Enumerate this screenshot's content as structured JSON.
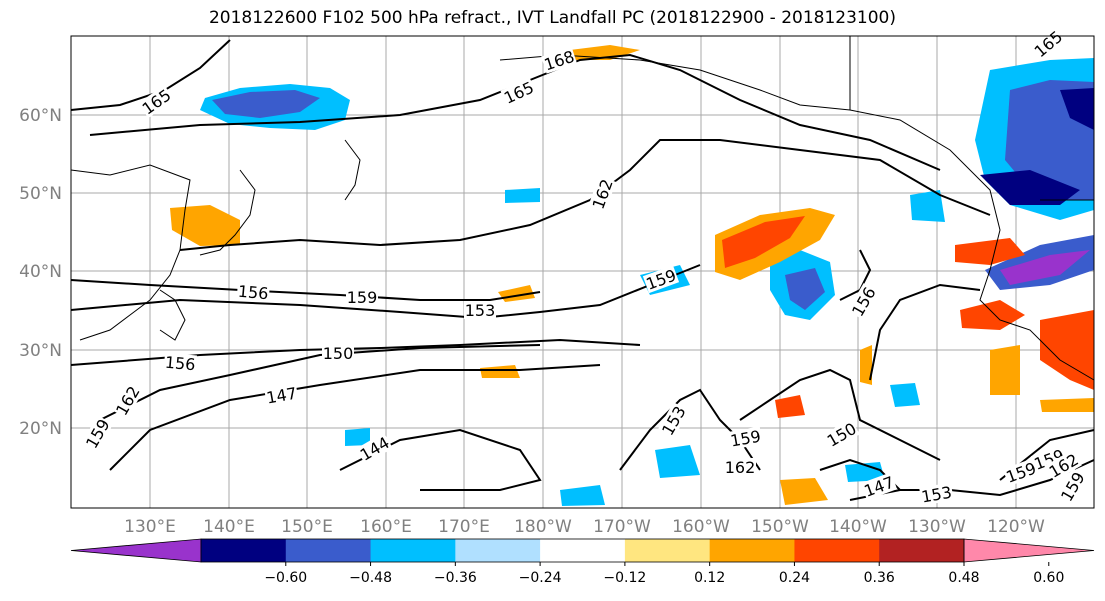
{
  "title": "2018122600 F102 500 hPa refract., IVT Landfall PC (2018122900 - 2018123100)",
  "latitude_labels": [
    "60°N",
    "50°N",
    "40°N",
    "30°N",
    "20°N"
  ],
  "longitude_labels": [
    "130°E",
    "140°E",
    "150°E",
    "160°E",
    "170°E",
    "180°W",
    "170°W",
    "160°W",
    "150°W",
    "140°W",
    "130°W",
    "120°W"
  ],
  "contour_labels": [
    "165",
    "168",
    "165",
    "162",
    "156",
    "159",
    "153",
    "159",
    "156",
    "150",
    "156",
    "147",
    "162",
    "159",
    "144",
    "153",
    "159",
    "162",
    "150",
    "147",
    "153",
    "159",
    "159",
    "162",
    "159",
    "165"
  ],
  "colorbar": {
    "colors": [
      "#9933cc",
      "#000080",
      "#3a5ccc",
      "#00bfff",
      "#b0e0ff",
      "#ffffff",
      "#ffe680",
      "#ffa500",
      "#ff4500",
      "#b22222",
      "#ff88aa"
    ],
    "tick_labels": [
      "−0.60",
      "−0.48",
      "−0.36",
      "−0.24",
      "−0.12",
      "0.12",
      "0.24",
      "0.36",
      "0.48",
      "0.60"
    ]
  }
}
